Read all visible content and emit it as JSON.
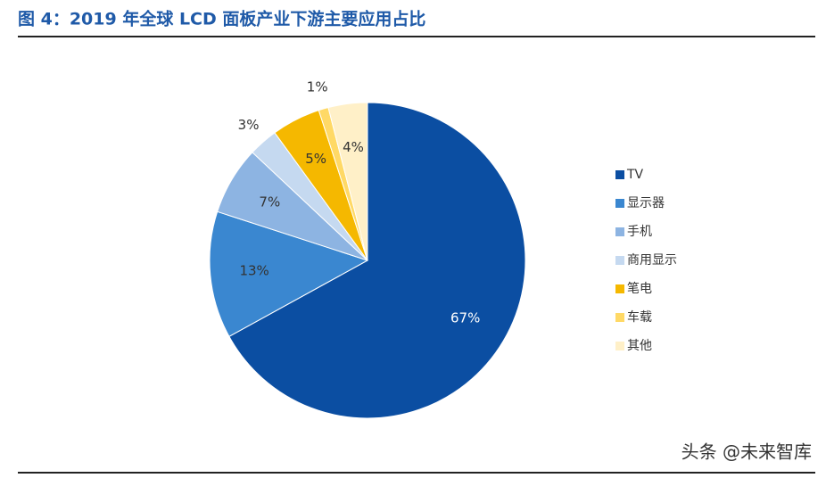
{
  "chart_data": {
    "type": "pie",
    "title": "图 4：2019 年全球 LCD 面板产业下游主要应用占比",
    "categories": [
      "TV",
      "显示器",
      "手机",
      "商用显示",
      "笔电",
      "车载",
      "其他"
    ],
    "values": [
      67,
      13,
      7,
      3,
      5,
      1,
      4
    ],
    "value_labels": [
      "67%",
      "13%",
      "7%",
      "3%",
      "5%",
      "1%",
      "4%"
    ],
    "colors": [
      "#0b4ea2",
      "#3a87d0",
      "#8db4e2",
      "#c5d9f0",
      "#f5b800",
      "#ffd966",
      "#fff0c8"
    ],
    "legend": "right",
    "watermark": "头条 @未来智库"
  }
}
